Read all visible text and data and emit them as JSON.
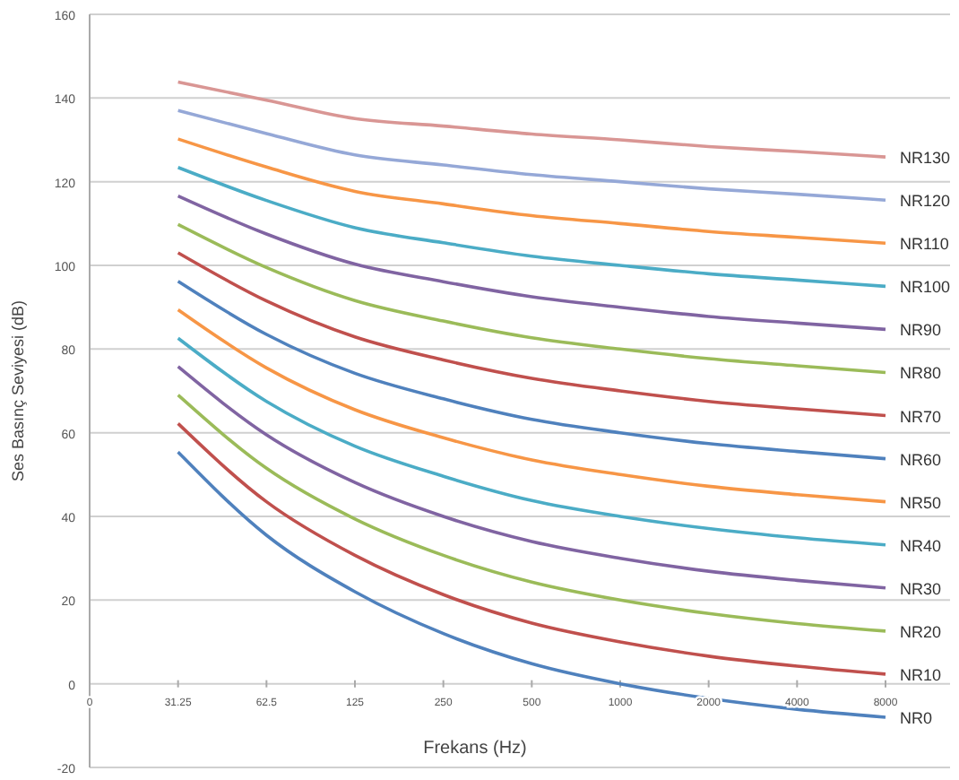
{
  "chart_data": {
    "type": "line",
    "xlabel": "Frekans (Hz)",
    "ylabel": "Ses Basınç Seviyesi (dB)",
    "categories": [
      "0",
      "31.25",
      "62.5",
      "125",
      "250",
      "500",
      "1000",
      "2000",
      "4000",
      "8000"
    ],
    "ylim": [
      -20,
      160
    ],
    "yticks": [
      -20,
      0,
      20,
      40,
      60,
      80,
      100,
      120,
      140,
      160
    ],
    "grid": "y",
    "marker": "none",
    "line_style": "solid",
    "series": [
      {
        "name": "NR0",
        "color": "#4f81bd",
        "values": [
          null,
          55.4,
          35.5,
          22.0,
          12.0,
          4.8,
          0,
          -3.5,
          -6.1,
          -8.0
        ]
      },
      {
        "name": "NR10",
        "color": "#c0504d",
        "values": [
          null,
          62.2,
          43.5,
          30.7,
          21.3,
          14.5,
          10,
          6.6,
          4.2,
          2.3
        ]
      },
      {
        "name": "NR20",
        "color": "#9bbb59",
        "values": [
          null,
          69.0,
          51.5,
          39.4,
          30.7,
          24.3,
          20,
          16.8,
          14.4,
          12.6
        ]
      },
      {
        "name": "NR30",
        "color": "#8064a2",
        "values": [
          null,
          75.8,
          59.5,
          48.1,
          40.0,
          34.0,
          30,
          26.9,
          24.7,
          22.9
        ]
      },
      {
        "name": "NR40",
        "color": "#4bacc6",
        "values": [
          null,
          82.6,
          67.5,
          56.8,
          49.6,
          43.8,
          40,
          37.1,
          34.9,
          33.2
        ]
      },
      {
        "name": "NR50",
        "color": "#f79646",
        "values": [
          null,
          89.4,
          75.5,
          65.5,
          58.8,
          53.5,
          50,
          47.2,
          45.2,
          43.5
        ]
      },
      {
        "name": "NR60",
        "color": "#4f81bd",
        "values": [
          null,
          96.2,
          83.5,
          74.2,
          68.1,
          63.2,
          60,
          57.4,
          55.5,
          53.8
        ]
      },
      {
        "name": "NR70",
        "color": "#c0504d",
        "values": [
          null,
          103.0,
          91.5,
          82.9,
          77.4,
          73.0,
          70,
          67.5,
          65.7,
          64.1
        ]
      },
      {
        "name": "NR80",
        "color": "#9bbb59",
        "values": [
          null,
          109.8,
          99.5,
          91.6,
          86.7,
          82.7,
          80,
          77.7,
          76.0,
          74.4
        ]
      },
      {
        "name": "NR90",
        "color": "#8064a2",
        "values": [
          null,
          116.6,
          107.5,
          100.3,
          96.1,
          92.5,
          90,
          87.8,
          86.2,
          84.7
        ]
      },
      {
        "name": "NR100",
        "color": "#4bacc6",
        "values": [
          null,
          123.4,
          115.5,
          109.0,
          105.4,
          102.2,
          100,
          98.0,
          96.5,
          95.0
        ]
      },
      {
        "name": "NR110",
        "color": "#f79646",
        "values": [
          null,
          130.2,
          123.5,
          117.7,
          114.7,
          111.9,
          110,
          108.1,
          106.7,
          105.3
        ]
      },
      {
        "name": "NR120",
        "color": "#95a8d7",
        "values": [
          null,
          137.0,
          131.5,
          126.4,
          124.0,
          121.7,
          120,
          118.3,
          117.0,
          115.6
        ]
      },
      {
        "name": "NR130",
        "color": "#d99694",
        "values": [
          null,
          143.8,
          139.5,
          135.1,
          133.3,
          131.4,
          130,
          128.4,
          127.2,
          125.9
        ]
      }
    ]
  }
}
